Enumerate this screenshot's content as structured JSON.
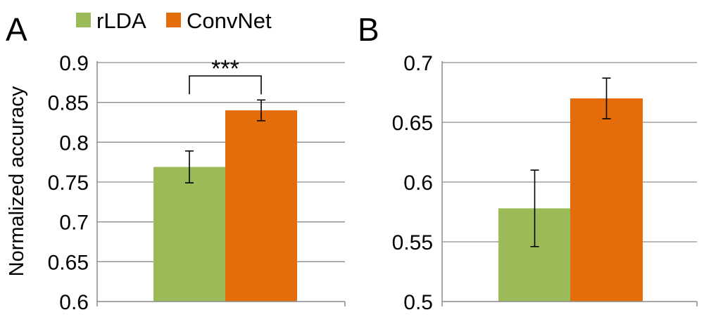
{
  "legend": [
    {
      "label": "rLDA",
      "color": "#9bbb59"
    },
    {
      "label": "ConvNet",
      "color": "#e46c0a"
    }
  ],
  "chart_data": [
    {
      "panel": "A",
      "type": "bar",
      "categories": [
        ""
      ],
      "ylabel": "Normalized accuracy",
      "ylim": [
        0.6,
        0.9
      ],
      "yticks": [
        0.6,
        0.65,
        0.7,
        0.75,
        0.8,
        0.85,
        0.9
      ],
      "ytick_labels": [
        "0.6",
        "0.65",
        "0.7",
        "0.75",
        "0.8",
        "0.85",
        "0.9"
      ],
      "grid": true,
      "series": [
        {
          "name": "rLDA",
          "values": [
            0.769
          ],
          "error": [
            0.02
          ],
          "color": "#9bbb59"
        },
        {
          "name": "ConvNet",
          "values": [
            0.84
          ],
          "error": [
            0.013
          ],
          "color": "#e46c0a"
        }
      ],
      "significance": {
        "label": "***",
        "between": [
          "rLDA",
          "ConvNet"
        ]
      }
    },
    {
      "panel": "B",
      "type": "bar",
      "categories": [
        ""
      ],
      "ylabel": "",
      "ylim": [
        0.5,
        0.7
      ],
      "yticks": [
        0.5,
        0.55,
        0.6,
        0.65,
        0.7
      ],
      "ytick_labels": [
        "0.5",
        "0.55",
        "0.6",
        "0.65",
        "0.7"
      ],
      "grid": true,
      "series": [
        {
          "name": "rLDA",
          "values": [
            0.578
          ],
          "error": [
            0.032
          ],
          "color": "#9bbb59"
        },
        {
          "name": "ConvNet",
          "values": [
            0.67
          ],
          "error": [
            0.017
          ],
          "color": "#e46c0a"
        }
      ]
    }
  ]
}
